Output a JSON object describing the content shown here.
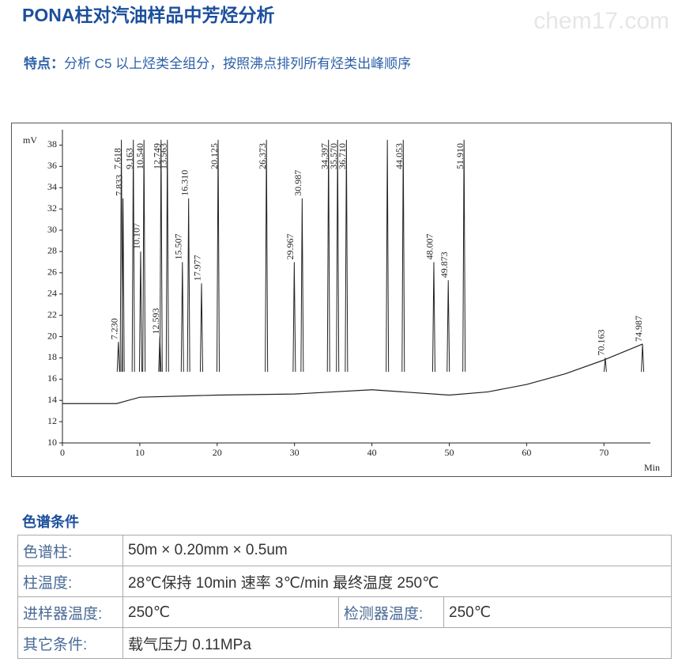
{
  "header": {
    "title": "PONA柱对汽油样品中芳烃分析",
    "watermark": "chem17.com"
  },
  "feature": {
    "label": "特点：",
    "text": "分析 C5 以上烃类全组分，按照沸点排列所有烃类出峰顺序"
  },
  "chart_data": {
    "type": "chromatogram",
    "y_label": "mV",
    "x_label": "Min",
    "xlim": [
      0,
      76
    ],
    "xticks": [
      0,
      10,
      20,
      30,
      40,
      50,
      60,
      70
    ],
    "ylim": [
      10,
      39.3
    ],
    "yticks": [
      10,
      12,
      14,
      16,
      18,
      20,
      22,
      24,
      26,
      28,
      30,
      32,
      34,
      36,
      38
    ],
    "color": "#222222",
    "baseline": {
      "x": [
        0,
        7,
        10,
        20,
        30,
        40,
        50,
        55,
        60,
        65,
        70,
        75
      ],
      "values": [
        13.7,
        13.7,
        14.3,
        14.5,
        14.6,
        15,
        14.5,
        14.8,
        15.5,
        16.5,
        17.8,
        19.3
      ]
    },
    "peaks": {
      "x": [
        7.23,
        7.618,
        7.833,
        9.163,
        10.107,
        10.54,
        12.593,
        12.749,
        13.563,
        15.507,
        16.31,
        17.977,
        20.125,
        26.373,
        29.967,
        30.987,
        34.397,
        35.57,
        36.71,
        42.0,
        44.053,
        48.007,
        49.873,
        51.91,
        70.163,
        74.987
      ],
      "values": [
        19.5,
        38.5,
        33,
        38.5,
        28,
        38.5,
        20,
        38.5,
        38.5,
        27,
        33,
        25,
        38.5,
        38.5,
        27,
        33,
        38.5,
        38.5,
        38.5,
        38.5,
        38.5,
        27,
        25.3,
        38.5,
        18,
        19.3
      ],
      "value_labels": [
        "7.230",
        "7.618",
        "7.833",
        "9.163",
        "10.107",
        "10.540",
        "12.593",
        "12.749",
        "13.563",
        "15.507",
        "16.310",
        "17.977",
        "20.125",
        "26.373",
        "29.967",
        "30.987",
        "34.397",
        "35.570",
        "36.710",
        null,
        "44.053",
        "48.007",
        "49.873",
        "51.910",
        "70.163",
        "74.987"
      ]
    }
  },
  "section_title": "色谱条件",
  "table": {
    "rows": [
      [
        "色谱柱:",
        "50m × 0.20mm × 0.5um"
      ],
      [
        "柱温度:",
        "28℃保持 10min  速率  3℃/min 最终温度 250℃"
      ],
      [
        "进样器温度:",
        "250℃",
        "检测器温度:",
        "250℃"
      ],
      [
        "其它条件:",
        "载气压力 0.11MPa"
      ]
    ]
  }
}
